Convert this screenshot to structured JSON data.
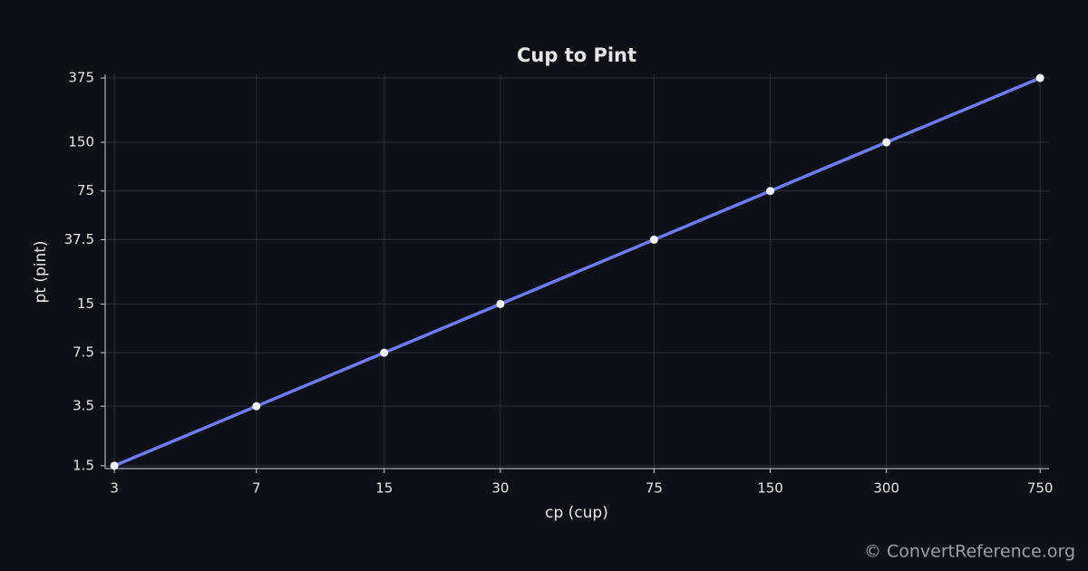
{
  "chart_data": {
    "type": "line",
    "title": "Cup to Pint",
    "x_label": "cp (cup)",
    "y_label": "pt (pint)",
    "x": [
      3,
      7,
      15,
      30,
      75,
      150,
      300,
      750
    ],
    "series": [
      {
        "name": "Cup to Pint",
        "color": "#6f7bf0",
        "values": [
          1.5,
          3.5,
          7.5,
          15,
          37.5,
          75,
          150,
          375
        ]
      }
    ],
    "xlim": [
      2.84,
      791
    ],
    "ylim": [
      1.44,
      395
    ],
    "xticks": [
      3,
      7,
      15,
      30,
      75,
      150,
      300,
      750
    ],
    "yticks": [
      1.5,
      3.5,
      7.5,
      15,
      37.5,
      75,
      150,
      375
    ],
    "xscale": "log",
    "yscale": "log",
    "grid": true,
    "footer": "© ConvertReference.org"
  }
}
